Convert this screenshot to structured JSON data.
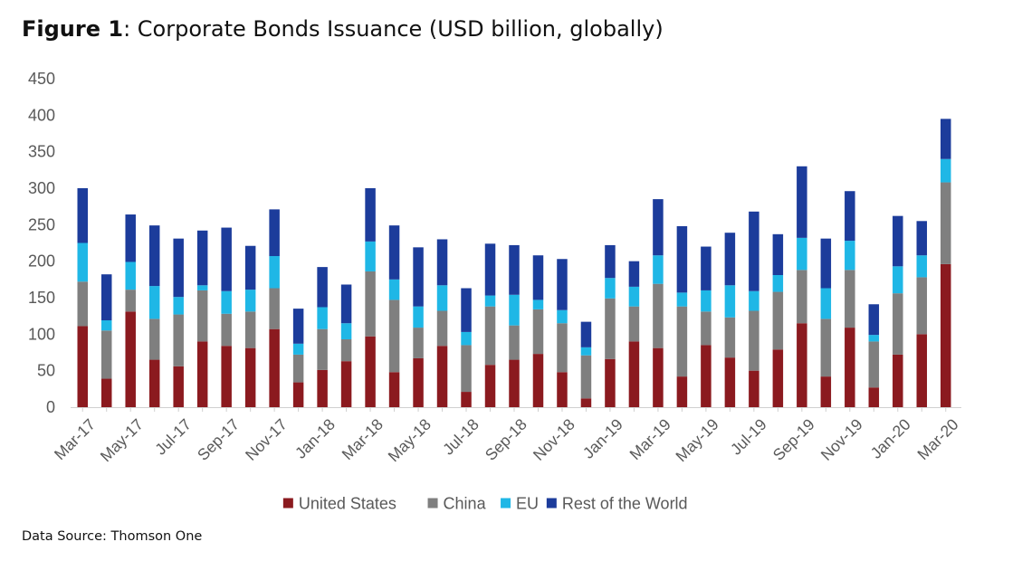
{
  "figure": {
    "label": "Figure 1",
    "separator": ": ",
    "title": "Corporate Bonds Issuance (USD billion, globally)"
  },
  "source": "Data Source: Thomson One",
  "chart_data": {
    "type": "bar",
    "stacked": true,
    "categories": [
      "Mar-17",
      "Apr-17",
      "May-17",
      "Jun-17",
      "Jul-17",
      "Aug-17",
      "Sep-17",
      "Oct-17",
      "Nov-17",
      "Dec-17",
      "Jan-18",
      "Feb-18",
      "Mar-18",
      "Apr-18",
      "May-18",
      "Jun-18",
      "Jul-18",
      "Aug-18",
      "Sep-18",
      "Oct-18",
      "Nov-18",
      "Dec-18",
      "Jan-19",
      "Feb-19",
      "Mar-19",
      "Apr-19",
      "May-19",
      "Jun-19",
      "Jul-19",
      "Aug-19",
      "Sep-19",
      "Oct-19",
      "Nov-19",
      "Dec-19",
      "Jan-20",
      "Feb-20",
      "Mar-20"
    ],
    "tick_labels": [
      "Mar-17",
      "May-17",
      "Jul-17",
      "Sep-17",
      "Nov-17",
      "Jan-18",
      "Mar-18",
      "May-18",
      "Jul-18",
      "Sep-18",
      "Nov-18",
      "Jan-19",
      "Mar-19",
      "May-19",
      "Jul-19",
      "Sep-19",
      "Nov-19",
      "Jan-20",
      "Mar-20"
    ],
    "series": [
      {
        "name": "United States",
        "color": "#8b1a1f",
        "values": [
          111,
          39,
          131,
          65,
          56,
          90,
          84,
          81,
          107,
          34,
          51,
          63,
          97,
          48,
          67,
          84,
          21,
          58,
          65,
          73,
          48,
          12,
          66,
          90,
          81,
          42,
          85,
          68,
          50,
          79,
          115,
          42,
          109,
          27,
          72,
          100,
          196
        ]
      },
      {
        "name": "China",
        "color": "#7f7f7f",
        "values": [
          61,
          66,
          30,
          56,
          71,
          70,
          44,
          50,
          56,
          38,
          56,
          30,
          89,
          99,
          42,
          48,
          64,
          80,
          47,
          61,
          67,
          59,
          83,
          48,
          88,
          96,
          46,
          55,
          82,
          79,
          73,
          79,
          79,
          63,
          84,
          78,
          112
        ]
      },
      {
        "name": "EU",
        "color": "#1fb7e6",
        "values": [
          53,
          14,
          38,
          45,
          24,
          7,
          31,
          30,
          44,
          15,
          30,
          22,
          41,
          28,
          29,
          35,
          18,
          15,
          42,
          13,
          18,
          11,
          28,
          27,
          39,
          19,
          29,
          44,
          27,
          23,
          44,
          42,
          40,
          9,
          37,
          30,
          32
        ]
      },
      {
        "name": "Rest of the World",
        "color": "#1c3c9b",
        "values": [
          75,
          63,
          65,
          83,
          80,
          75,
          87,
          60,
          64,
          48,
          55,
          53,
          73,
          74,
          81,
          63,
          60,
          71,
          68,
          61,
          70,
          35,
          45,
          35,
          77,
          91,
          60,
          72,
          109,
          56,
          98,
          68,
          68,
          42,
          69,
          47,
          55
        ]
      }
    ],
    "ylim": [
      0,
      450
    ],
    "yticks": [
      0,
      50,
      100,
      150,
      200,
      250,
      300,
      350,
      400,
      450
    ],
    "grid": false,
    "legend_position": "bottom"
  }
}
